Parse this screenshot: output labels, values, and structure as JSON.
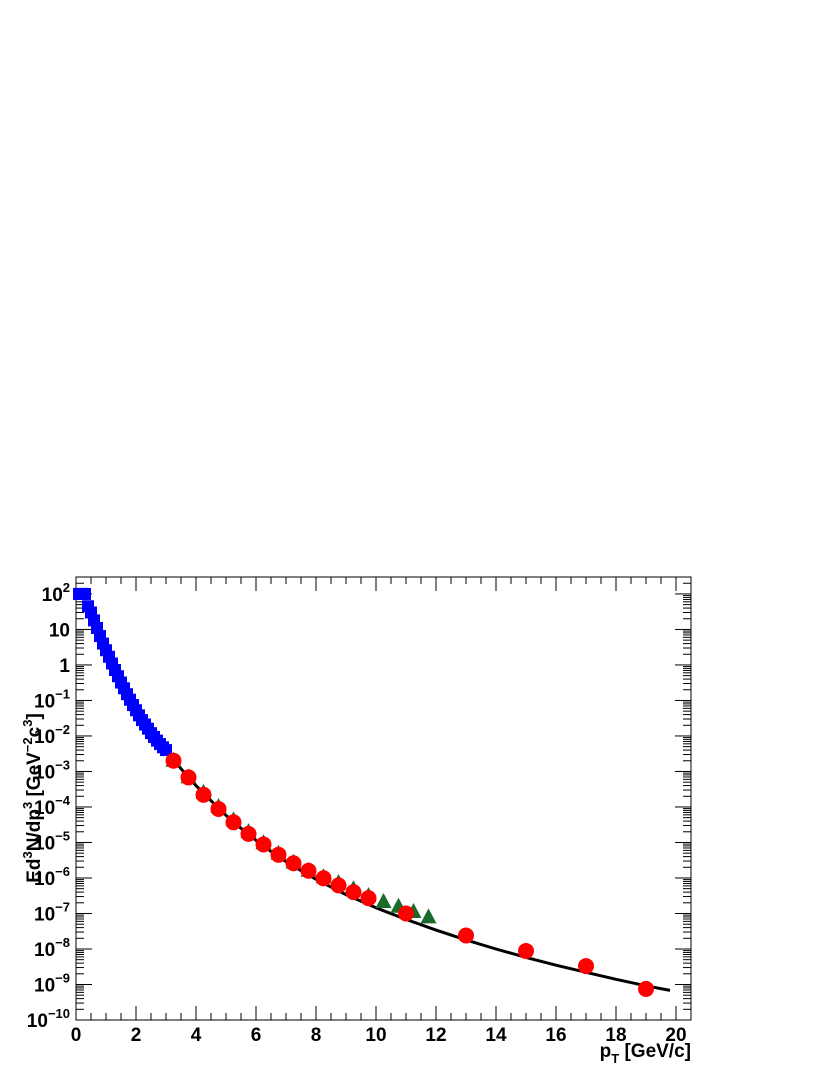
{
  "chart_data": {
    "type": "scatter",
    "title": "",
    "xlabel": {
      "main": "p",
      "sub": "T",
      "rest": " [GeV/c]"
    },
    "ylabel": {
      "p1": "Ed",
      "s1": "3",
      "p2": "N/dp",
      "s2": "3",
      "p3": " [GeV",
      "s3": "−2",
      "p4": "c",
      "s4": "3",
      "p5": "]"
    },
    "xlim": [
      0,
      20.5
    ],
    "ylim": [
      1e-10,
      300
    ],
    "y_scale": "log",
    "x_ticks": [
      "0",
      "2",
      "4",
      "6",
      "8",
      "10",
      "12",
      "14",
      "16",
      "18",
      "20"
    ],
    "x_tick_values": [
      0,
      2,
      4,
      6,
      8,
      10,
      12,
      14,
      16,
      18,
      20
    ],
    "y_ticks": [
      {
        "value": 100,
        "label": "10",
        "exp": "2"
      },
      {
        "value": 10,
        "label": "10",
        "exp": ""
      },
      {
        "value": 1,
        "label": "1",
        "exp": ""
      },
      {
        "value": 0.1,
        "label": "10",
        "exp": "−1"
      },
      {
        "value": 0.01,
        "label": "10",
        "exp": "−2"
      },
      {
        "value": 0.001,
        "label": "10",
        "exp": "−3"
      },
      {
        "value": 0.0001,
        "label": "10",
        "exp": "−4"
      },
      {
        "value": 1e-05,
        "label": "10",
        "exp": "−5"
      },
      {
        "value": 1e-06,
        "label": "10",
        "exp": "−6"
      },
      {
        "value": 1e-07,
        "label": "10",
        "exp": "−7"
      },
      {
        "value": 1e-08,
        "label": "10",
        "exp": "−8"
      },
      {
        "value": 1e-09,
        "label": "10",
        "exp": "−9"
      },
      {
        "value": 1e-10,
        "label": "10",
        "exp": "−10"
      }
    ],
    "grid": false,
    "legend": "none",
    "series": [
      {
        "marker": "square",
        "color": "#0000ff",
        "x": [
          0.1,
          0.2,
          0.3,
          0.4,
          0.5,
          0.6,
          0.7,
          0.8,
          0.9,
          1.0,
          1.1,
          1.2,
          1.3,
          1.4,
          1.5,
          1.6,
          1.7,
          1.8,
          1.9,
          2.0,
          2.1,
          2.2,
          2.3,
          2.4,
          2.5,
          2.6,
          2.7,
          2.8,
          2.9,
          3.0
        ],
        "y": [
          100,
          100,
          100,
          45,
          30,
          18,
          11,
          6.5,
          4.0,
          2.6,
          1.7,
          1.1,
          0.72,
          0.48,
          0.32,
          0.22,
          0.15,
          0.105,
          0.074,
          0.053,
          0.038,
          0.028,
          0.021,
          0.016,
          0.012,
          0.0094,
          0.0074,
          0.0059,
          0.0048,
          0.004
        ]
      },
      {
        "marker": "triangle",
        "color": "#1a6b2a",
        "x": [
          3.25,
          3.75,
          4.25,
          4.75,
          5.25,
          5.75,
          6.25,
          6.75,
          7.25,
          7.75,
          8.25,
          8.75,
          9.25,
          9.75,
          10.25,
          10.75,
          11.25,
          11.75
        ],
        "y": [
          0.002,
          0.00068,
          0.00025,
          0.0001,
          4.2e-05,
          1.95e-05,
          9.5e-06,
          4.8e-06,
          2.7e-06,
          1.6e-06,
          1.05e-06,
          7.2e-07,
          4.8e-07,
          3.1e-07,
          2.1e-07,
          1.55e-07,
          1.1e-07,
          7.8e-08
        ]
      },
      {
        "marker": "circle",
        "color": "#ff0000",
        "x": [
          3.25,
          3.75,
          4.25,
          4.75,
          5.25,
          5.75,
          6.25,
          6.75,
          7.25,
          7.75,
          8.25,
          8.75,
          9.25,
          9.75,
          11.0,
          13.0,
          15.0,
          17.0,
          19.0
        ],
        "y": [
          0.002,
          0.00068,
          0.00022,
          8.8e-05,
          3.7e-05,
          1.75e-05,
          8.8e-06,
          4.5e-06,
          2.6e-06,
          1.6e-06,
          9.8e-07,
          6.2e-07,
          4e-07,
          2.7e-07,
          1e-07,
          2.4e-08,
          8.8e-09,
          3.3e-09,
          7.5e-10
        ]
      }
    ],
    "fit_curve": {
      "color": "#000000",
      "x": [
        0.4,
        0.6,
        0.8,
        1.0,
        1.2,
        1.5,
        1.8,
        2.1,
        2.4,
        2.7,
        3.0,
        3.5,
        4.0,
        4.5,
        5.0,
        5.5,
        6.0,
        6.5,
        7.0,
        7.5,
        8.0,
        9.0,
        10.0,
        11.0,
        12.0,
        13.0,
        14.0,
        15.0,
        16.0,
        17.0,
        18.0,
        19.0,
        19.8
      ],
      "y": [
        60,
        20,
        7.5,
        3.2,
        1.4,
        0.48,
        0.165,
        0.06,
        0.0235,
        0.0095,
        0.004,
        0.0012,
        0.0004,
        0.00015,
        5.8e-05,
        2.5e-05,
        1.15e-05,
        5.6e-06,
        2.9e-06,
        1.6e-06,
        9.2e-07,
        3.4e-07,
        1.45e-07,
        6.8e-08,
        3.4e-08,
        1.8e-08,
        1e-08,
        5.8e-09,
        3.5e-09,
        2.2e-09,
        1.4e-09,
        9.2e-10,
        6.8e-10
      ]
    }
  }
}
